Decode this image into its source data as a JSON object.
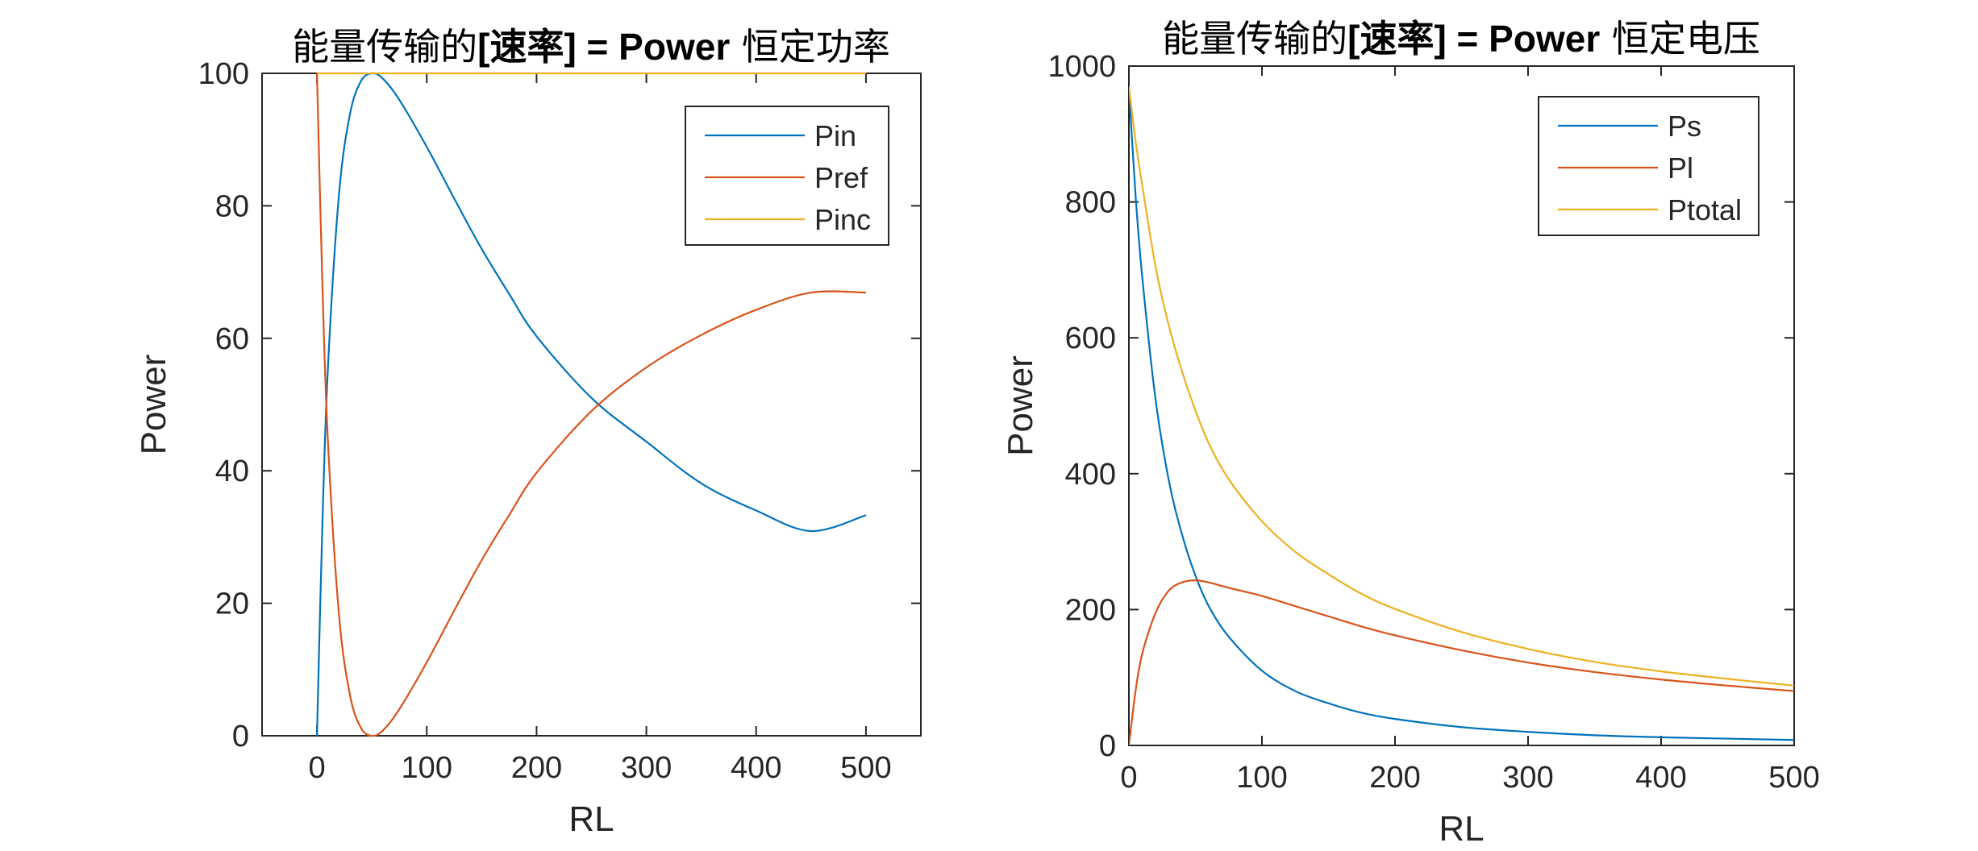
{
  "chart_data": [
    {
      "type": "line",
      "title_parts": {
        "pre": "能量传输的",
        "bold": "[速率] = Power",
        "post": " 恒定功率"
      },
      "xlabel": "RL",
      "ylabel": "Power",
      "xlim": [
        -50,
        550
      ],
      "ylim": [
        0,
        100
      ],
      "xticks": [
        0,
        100,
        200,
        300,
        400,
        500
      ],
      "yticks": [
        0,
        20,
        40,
        60,
        80,
        100
      ],
      "legend_position": "top-right",
      "grid": false,
      "series": [
        {
          "name": "Pin",
          "color": "#0072BD",
          "x": [
            0,
            5,
            10,
            20,
            30,
            40,
            50,
            60,
            75,
            100,
            125,
            150,
            175,
            200,
            250,
            300,
            350,
            400,
            450,
            500
          ],
          "y": [
            0,
            32.2,
            55.6,
            81.6,
            93.8,
            98.8,
            100,
            99.2,
            96,
            88.9,
            81.1,
            73.5,
            66.7,
            60.3,
            51.0,
            44.4,
            38.1,
            34.0,
            30.9,
            33.3
          ]
        },
        {
          "name": "Pref",
          "color": "#D95319",
          "x": [
            0,
            5,
            10,
            20,
            30,
            40,
            50,
            60,
            75,
            100,
            125,
            150,
            175,
            200,
            250,
            300,
            350,
            400,
            450,
            500
          ],
          "y": [
            100,
            67.8,
            44.4,
            18.4,
            6.2,
            1.2,
            0,
            0.8,
            4,
            11.1,
            18.9,
            26.5,
            33.3,
            39.7,
            49.0,
            55.6,
            60.5,
            64.3,
            66.9,
            66.9
          ]
        },
        {
          "name": "Pinc",
          "color": "#EDB120",
          "x": [
            0,
            500
          ],
          "y": [
            100,
            100
          ]
        }
      ]
    },
    {
      "type": "line",
      "title_parts": {
        "pre": "能量传输的",
        "bold": "[速率] = Power",
        "post": " 恒定电压"
      },
      "xlabel": "RL",
      "ylabel": "Power",
      "xlim": [
        0,
        500
      ],
      "ylim": [
        0,
        1000
      ],
      "xticks": [
        0,
        100,
        200,
        300,
        400,
        500
      ],
      "yticks": [
        0,
        200,
        400,
        600,
        800,
        1000
      ],
      "legend_position": "top-right",
      "grid": false,
      "series": [
        {
          "name": "Ps",
          "color": "#0072BD",
          "x": [
            0,
            5,
            10,
            20,
            30,
            40,
            50,
            60,
            75,
            100,
            125,
            150,
            175,
            200,
            250,
            300,
            350,
            400,
            450,
            500
          ],
          "y": [
            970,
            810,
            690,
            510,
            390,
            310,
            250,
            205,
            160,
            110,
            80,
            62,
            48,
            39,
            27,
            20,
            15,
            12,
            10,
            8
          ]
        },
        {
          "name": "Pl",
          "color": "#D95319",
          "x": [
            0,
            5,
            10,
            20,
            30,
            40,
            50,
            60,
            75,
            100,
            125,
            150,
            175,
            200,
            250,
            300,
            350,
            400,
            450,
            500
          ],
          "y": [
            0,
            80,
            135,
            195,
            228,
            240,
            243,
            240,
            232,
            220,
            205,
            190,
            175,
            162,
            140,
            122,
            108,
            97,
            88,
            80
          ]
        },
        {
          "name": "Ptotal",
          "color": "#EDB120",
          "x": [
            0,
            5,
            10,
            20,
            30,
            40,
            50,
            60,
            75,
            100,
            125,
            150,
            175,
            200,
            250,
            300,
            350,
            400,
            450,
            500
          ],
          "y": [
            970,
            890,
            825,
            705,
            618,
            550,
            493,
            445,
            392,
            330,
            285,
            252,
            223,
            201,
            167,
            142,
            123,
            109,
            98,
            88
          ]
        }
      ]
    }
  ]
}
